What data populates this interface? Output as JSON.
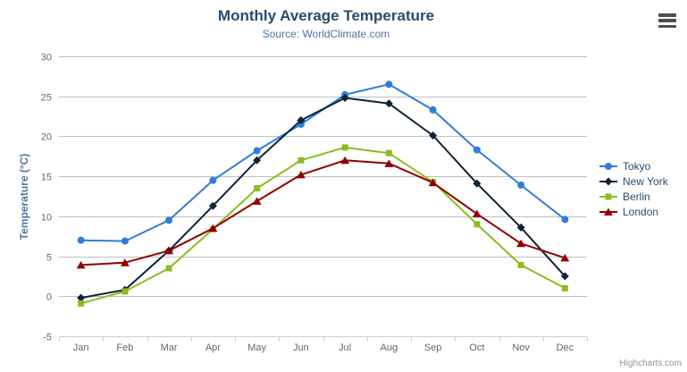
{
  "header": {
    "title": "Monthly Average Temperature",
    "subtitle": "Source: WorldClimate.com"
  },
  "icons": {
    "export_menu": "hamburger-icon"
  },
  "credits": {
    "label": "Highcharts.com"
  },
  "colors": {
    "title": "#274b6d",
    "subtitle": "#4d759e",
    "yaxis_title": "#4d759e",
    "axis_labels": "#666666",
    "gridline": "#c0c0c0",
    "axis_line": "#c0d0e0",
    "legend_text": "#274b6d",
    "credits_text": "#909090"
  },
  "chart_data": {
    "type": "line",
    "title": "Monthly Average Temperature",
    "subtitle": "Source: WorldClimate.com",
    "categories": [
      "Jan",
      "Feb",
      "Mar",
      "Apr",
      "May",
      "Jun",
      "Jul",
      "Aug",
      "Sep",
      "Oct",
      "Nov",
      "Dec"
    ],
    "xlabel": "",
    "ylabel": "Temperature (°C)",
    "ylim": [
      -5,
      30
    ],
    "ytick_step": 5,
    "grid": true,
    "legend_position": "right",
    "series": [
      {
        "name": "Tokyo",
        "color": "#2f7ed8",
        "marker": "circle",
        "values": [
          7.0,
          6.9,
          9.5,
          14.5,
          18.2,
          21.5,
          25.2,
          26.5,
          23.3,
          18.3,
          13.9,
          9.6
        ]
      },
      {
        "name": "New York",
        "color": "#0d233a",
        "marker": "diamond",
        "values": [
          -0.2,
          0.8,
          5.7,
          11.3,
          17.0,
          22.0,
          24.8,
          24.1,
          20.1,
          14.1,
          8.6,
          2.5
        ]
      },
      {
        "name": "Berlin",
        "color": "#8bbc21",
        "marker": "square",
        "values": [
          -0.9,
          0.6,
          3.5,
          8.4,
          13.5,
          17.0,
          18.6,
          17.9,
          14.3,
          9.0,
          3.9,
          1.0
        ]
      },
      {
        "name": "London",
        "color": "#910000",
        "marker": "triangle",
        "values": [
          3.9,
          4.2,
          5.7,
          8.5,
          11.9,
          15.2,
          17.0,
          16.6,
          14.2,
          10.3,
          6.6,
          4.8
        ]
      }
    ]
  }
}
